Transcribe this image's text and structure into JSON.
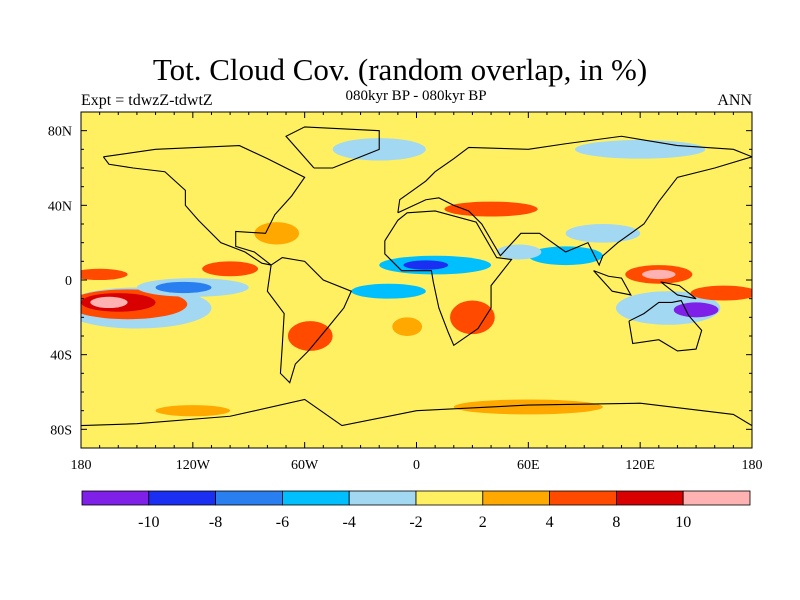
{
  "chart_data": {
    "type": "heatmap",
    "title": "Tot. Cloud Cov. (random overlap, in %)",
    "left_string": "Expt = tdwzZ-tdwtZ",
    "center_string": "080kyr BP - 080kyr BP",
    "right_string": "ANN",
    "xlim": [
      -180,
      180
    ],
    "ylim": [
      -90,
      90
    ],
    "x_ticks": [
      {
        "value": -180,
        "label": "180"
      },
      {
        "value": -120,
        "label": "120W"
      },
      {
        "value": -60,
        "label": "60W"
      },
      {
        "value": 0,
        "label": "0"
      },
      {
        "value": 60,
        "label": "60E"
      },
      {
        "value": 120,
        "label": "120E"
      },
      {
        "value": 180,
        "label": "180"
      }
    ],
    "y_ticks": [
      {
        "value": 80,
        "label": "80N"
      },
      {
        "value": 40,
        "label": "40N"
      },
      {
        "value": 0,
        "label": "0"
      },
      {
        "value": -40,
        "label": "40S"
      },
      {
        "value": -80,
        "label": "80S"
      }
    ],
    "contour_levels": [
      -10,
      -8,
      -6,
      -4,
      -2,
      2,
      4,
      8,
      10
    ],
    "level_labels": [
      "-10",
      "-8",
      "-6",
      "-4",
      "-2",
      "2",
      "4",
      "8",
      "10"
    ],
    "fill_colors": [
      "#7e20e8",
      "#1b2ff2",
      "#2a7ff0",
      "#00bfff",
      "#a2d8f2",
      "#fff062",
      "#ffa800",
      "#ff4a00",
      "#d80000",
      "#ffb2b2"
    ],
    "anomalies": [
      {
        "lon": -150,
        "lat": -15,
        "dlon": 40,
        "dlat": 11,
        "value": -3
      },
      {
        "lon": -155,
        "lat": -13,
        "dlon": 32,
        "dlat": 8,
        "value": 5
      },
      {
        "lon": -160,
        "lat": -12,
        "dlon": 20,
        "dlat": 5,
        "value": 9
      },
      {
        "lon": -165,
        "lat": -12,
        "dlon": 10,
        "dlat": 3,
        "value": 11
      },
      {
        "lon": -170,
        "lat": 3,
        "dlon": 15,
        "dlat": 3,
        "value": 6
      },
      {
        "lon": -120,
        "lat": -4,
        "dlon": 30,
        "dlat": 5,
        "value": -4
      },
      {
        "lon": -125,
        "lat": -4,
        "dlon": 15,
        "dlat": 3,
        "value": -7
      },
      {
        "lon": -100,
        "lat": 6,
        "dlon": 15,
        "dlat": 4,
        "value": 5
      },
      {
        "lon": -15,
        "lat": -6,
        "dlon": 20,
        "dlat": 4,
        "value": -5
      },
      {
        "lon": 10,
        "lat": 8,
        "dlon": 30,
        "dlat": 5,
        "value": -5
      },
      {
        "lon": 5,
        "lat": 8,
        "dlon": 12,
        "dlat": 2.5,
        "value": -9
      },
      {
        "lon": 80,
        "lat": 13,
        "dlon": 20,
        "dlat": 5,
        "value": -5
      },
      {
        "lon": 55,
        "lat": 15,
        "dlon": 12,
        "dlat": 4,
        "value": -4
      },
      {
        "lon": 130,
        "lat": 3,
        "dlon": 18,
        "dlat": 5,
        "value": 6
      },
      {
        "lon": 130,
        "lat": 3,
        "dlon": 9,
        "dlat": 2.5,
        "value": 11
      },
      {
        "lon": 135,
        "lat": -15,
        "dlon": 28,
        "dlat": 9,
        "value": -4
      },
      {
        "lon": 150,
        "lat": -16,
        "dlon": 12,
        "dlat": 4,
        "value": -11
      },
      {
        "lon": 165,
        "lat": -7,
        "dlon": 18,
        "dlat": 4,
        "value": 6
      },
      {
        "lon": 30,
        "lat": -20,
        "dlon": 12,
        "dlat": 9,
        "value": 5
      },
      {
        "lon": -57,
        "lat": -30,
        "dlon": 12,
        "dlat": 8,
        "value": 6
      },
      {
        "lon": -75,
        "lat": 25,
        "dlon": 12,
        "dlat": 6,
        "value": 3
      },
      {
        "lon": -20,
        "lat": 70,
        "dlon": 25,
        "dlat": 6,
        "value": -3
      },
      {
        "lon": 120,
        "lat": 70,
        "dlon": 35,
        "dlat": 5,
        "value": -3
      },
      {
        "lon": 40,
        "lat": 38,
        "dlon": 25,
        "dlat": 4,
        "value": 5
      },
      {
        "lon": 100,
        "lat": 25,
        "dlon": 20,
        "dlat": 5,
        "value": -4
      },
      {
        "lon": 60,
        "lat": -68,
        "dlon": 40,
        "dlat": 4,
        "value": 3
      },
      {
        "lon": -120,
        "lat": -70,
        "dlon": 20,
        "dlat": 3,
        "value": 3
      },
      {
        "lon": -5,
        "lat": -25,
        "dlon": 8,
        "dlat": 5,
        "value": 3
      }
    ]
  }
}
